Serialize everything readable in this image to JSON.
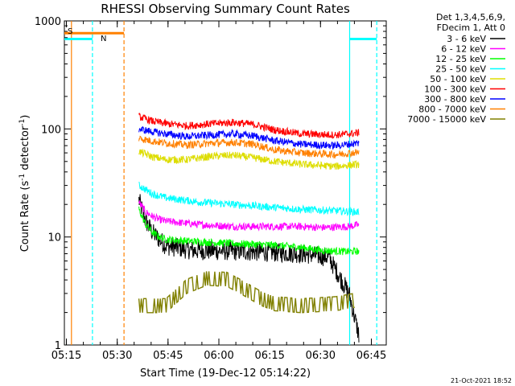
{
  "chart_data": {
    "type": "line",
    "title": "RHESSI Observing Summary Count Rates",
    "xlabel": "Start Time (19-Dec-12 05:14:22)",
    "ylabel_main": "Count Rate (s",
    "ylabel_sup1": "-1",
    "ylabel_mid": " detector",
    "ylabel_sup2": "-1",
    "ylabel_end": ")",
    "yscale": "log",
    "ylim": [
      1,
      1000
    ],
    "xlim_minutes": [
      0,
      95
    ],
    "x_ticks": [
      {
        "label": "05:15",
        "minute": 0.6
      },
      {
        "label": "05:30",
        "minute": 15.6
      },
      {
        "label": "05:45",
        "minute": 30.6
      },
      {
        "label": "06:00",
        "minute": 45.6
      },
      {
        "label": "06:15",
        "minute": 60.6
      },
      {
        "label": "06:30",
        "minute": 75.6
      },
      {
        "label": "06:45",
        "minute": 90.6
      }
    ],
    "y_ticks": [
      {
        "label": "1",
        "value": 1
      },
      {
        "label": "10",
        "value": 10
      },
      {
        "label": "100",
        "value": 100
      },
      {
        "label": "1000",
        "value": 1000
      }
    ],
    "legend_header": [
      "Det 1,3,4,5,6,9,",
      "FDecim 1, Att 0"
    ],
    "legend_position": "right",
    "timestamp": "21-Oct-2021 18:52",
    "flags": {
      "saa_label": "S",
      "night_label": "N"
    },
    "series": [
      {
        "name": "3 - 6 keV",
        "color": "#000000",
        "profile": [
          [
            22,
            22
          ],
          [
            24,
            14
          ],
          [
            26,
            11
          ],
          [
            28,
            9.5
          ],
          [
            30,
            8.3
          ],
          [
            38,
            7.5
          ],
          [
            50,
            7.4
          ],
          [
            62,
            7.2
          ],
          [
            70,
            7.0
          ],
          [
            78,
            6.5
          ],
          [
            84,
            3
          ],
          [
            87,
            1.2
          ]
        ]
      },
      {
        "name": "6 - 12 keV",
        "color": "#ff00ff",
        "profile": [
          [
            22,
            21
          ],
          [
            24,
            17
          ],
          [
            26,
            15.5
          ],
          [
            28,
            14.5
          ],
          [
            30,
            14
          ],
          [
            40,
            13
          ],
          [
            50,
            12.5
          ],
          [
            62,
            12.5
          ],
          [
            70,
            12.5
          ],
          [
            76,
            12.2
          ],
          [
            84,
            12.5
          ],
          [
            87,
            13
          ]
        ]
      },
      {
        "name": "12 - 25 keV",
        "color": "#00ff00",
        "profile": [
          [
            22,
            18
          ],
          [
            24,
            13
          ],
          [
            26,
            11
          ],
          [
            28,
            10
          ],
          [
            30,
            9.5
          ],
          [
            40,
            9.0
          ],
          [
            50,
            8.7
          ],
          [
            62,
            8.4
          ],
          [
            70,
            8.0
          ],
          [
            76,
            7.5
          ],
          [
            84,
            7.3
          ],
          [
            87,
            7.4
          ]
        ]
      },
      {
        "name": "25 - 50 keV",
        "color": "#00ffff",
        "profile": [
          [
            22,
            30
          ],
          [
            26,
            25
          ],
          [
            30,
            23
          ],
          [
            40,
            21
          ],
          [
            50,
            20
          ],
          [
            60,
            19
          ],
          [
            70,
            18
          ],
          [
            80,
            17.5
          ],
          [
            87,
            17
          ]
        ]
      },
      {
        "name": "50 - 100 keV",
        "color": "#dddd00",
        "profile": [
          [
            22,
            62
          ],
          [
            26,
            55
          ],
          [
            30,
            52
          ],
          [
            36,
            52
          ],
          [
            44,
            56
          ],
          [
            50,
            57
          ],
          [
            56,
            54
          ],
          [
            62,
            50
          ],
          [
            70,
            47
          ],
          [
            80,
            45
          ],
          [
            87,
            47
          ]
        ]
      },
      {
        "name": "100 - 300 keV",
        "color": "#ff0000",
        "profile": [
          [
            22,
            130
          ],
          [
            26,
            118
          ],
          [
            30,
            112
          ],
          [
            36,
            107
          ],
          [
            44,
            112
          ],
          [
            50,
            115
          ],
          [
            56,
            110
          ],
          [
            62,
            98
          ],
          [
            70,
            90
          ],
          [
            80,
            88
          ],
          [
            87,
            92
          ]
        ]
      },
      {
        "name": "300 - 800 keV",
        "color": "#0000ff",
        "profile": [
          [
            22,
            100
          ],
          [
            26,
            94
          ],
          [
            30,
            90
          ],
          [
            36,
            85
          ],
          [
            44,
            88
          ],
          [
            50,
            90
          ],
          [
            56,
            86
          ],
          [
            62,
            78
          ],
          [
            70,
            72
          ],
          [
            80,
            70
          ],
          [
            87,
            74
          ]
        ]
      },
      {
        "name": "800 - 7000 keV",
        "color": "#ff8000",
        "profile": [
          [
            22,
            82
          ],
          [
            26,
            77
          ],
          [
            30,
            74
          ],
          [
            36,
            71
          ],
          [
            44,
            74
          ],
          [
            50,
            75
          ],
          [
            56,
            72
          ],
          [
            62,
            64
          ],
          [
            70,
            60
          ],
          [
            80,
            58
          ],
          [
            87,
            61
          ]
        ]
      },
      {
        "name": "7000 - 15000 keV",
        "color": "#808000",
        "profile": [
          [
            22,
            2.4
          ],
          [
            30,
            2.4
          ],
          [
            36,
            3.6
          ],
          [
            42,
            4.3
          ],
          [
            48,
            4.2
          ],
          [
            52,
            3.6
          ],
          [
            58,
            2.8
          ],
          [
            62,
            2.5
          ],
          [
            70,
            2.4
          ],
          [
            80,
            2.5
          ],
          [
            86,
            2.7
          ]
        ]
      }
    ],
    "vertical_markers": [
      {
        "minute": 2.1,
        "color": "#ff8000",
        "style": "solid"
      },
      {
        "minute": 8.3,
        "color": "#00ffff",
        "style": "dashed"
      },
      {
        "minute": 17.6,
        "color": "#ff8000",
        "style": "dashed"
      },
      {
        "minute": 84.2,
        "color": "#00ffff",
        "style": "solid"
      },
      {
        "minute": 92.2,
        "color": "#00ffff",
        "style": "dashed"
      }
    ],
    "flag_bars": [
      {
        "label_ref": "saa",
        "color": "#ff8000",
        "from": 0,
        "to": 17.6,
        "level": 770
      },
      {
        "label_ref": "night",
        "color": "#00ffff",
        "from": 0,
        "to": 8.3,
        "level": 680
      },
      {
        "label_ref": "night",
        "color": "#00ffff",
        "from": 84.2,
        "to": 92.2,
        "level": 680
      }
    ]
  }
}
